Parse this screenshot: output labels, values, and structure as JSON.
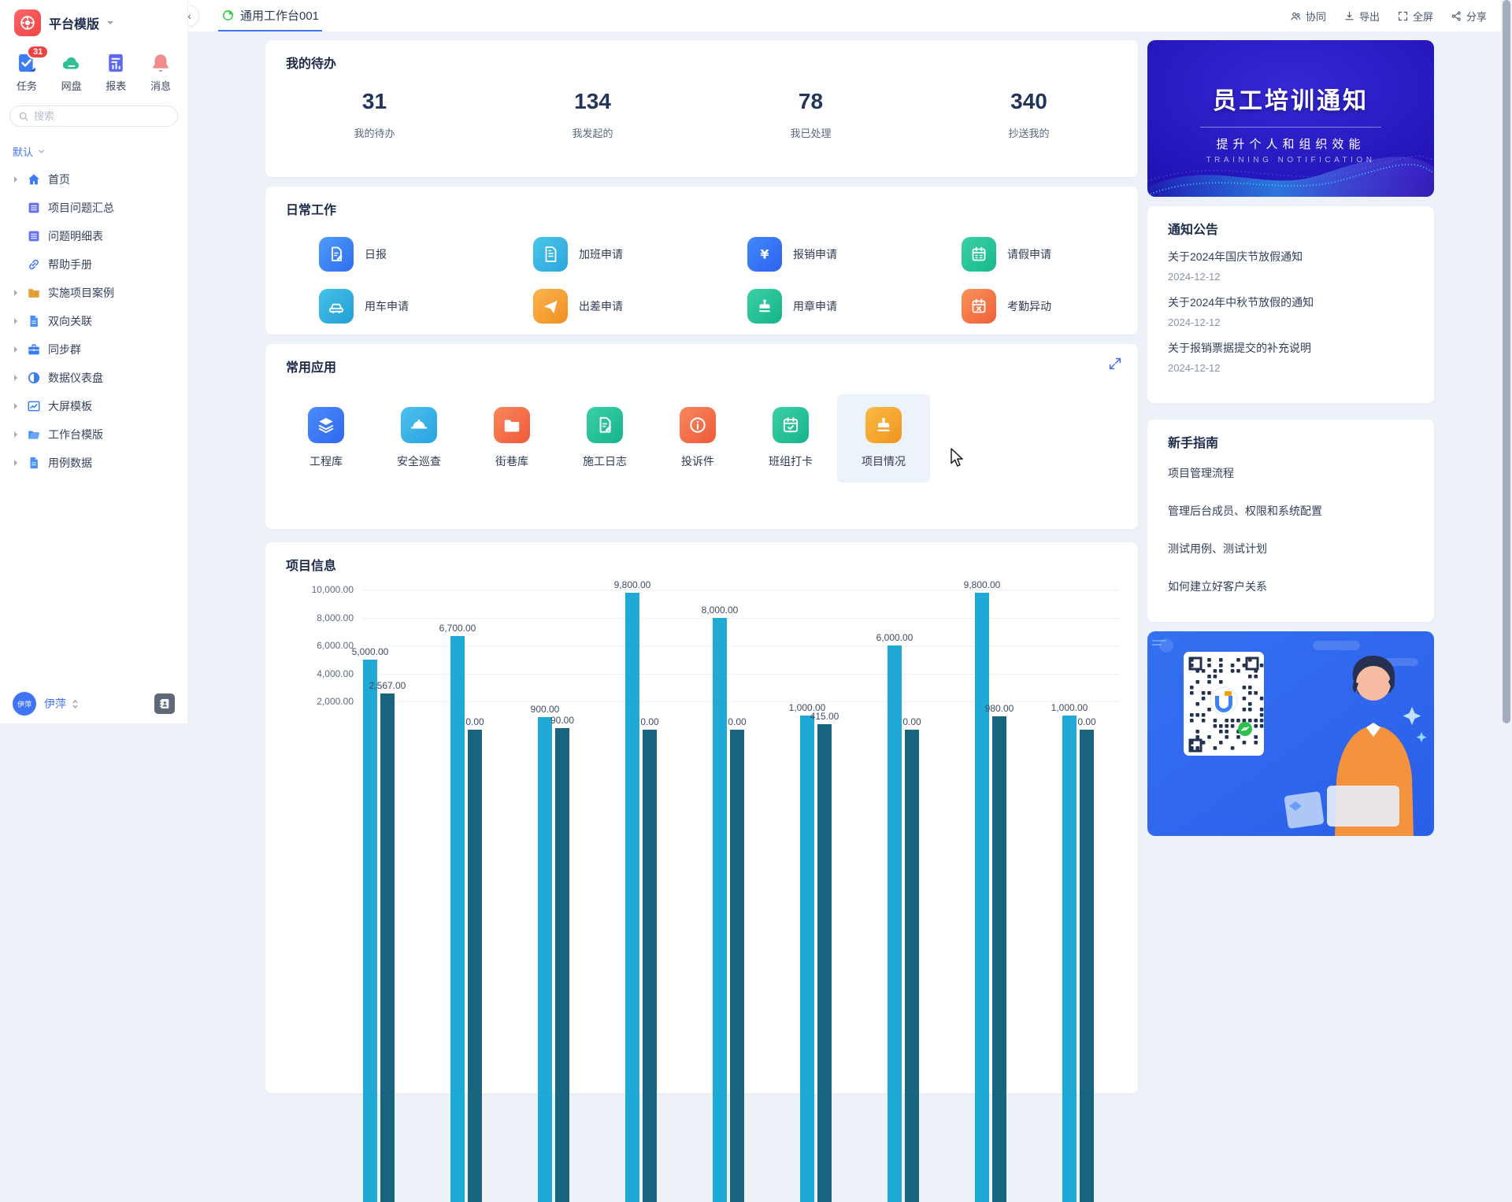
{
  "app": {
    "name": "平台模版"
  },
  "sidebar": {
    "quick_icons": [
      {
        "label": "任务",
        "icon": "task",
        "badge": "31"
      },
      {
        "label": "网盘",
        "icon": "disk",
        "badge": null
      },
      {
        "label": "报表",
        "icon": "report",
        "badge": null
      },
      {
        "label": "消息",
        "icon": "message",
        "badge": null
      }
    ],
    "search_placeholder": "搜索",
    "group_label": "默认",
    "menu": [
      {
        "label": "首页",
        "icon": "home",
        "expandable": true
      },
      {
        "label": "项目问题汇总",
        "icon": "table",
        "expandable": false
      },
      {
        "label": "问题明细表",
        "icon": "table",
        "expandable": false
      },
      {
        "label": "帮助手册",
        "icon": "link",
        "expandable": false
      },
      {
        "label": "实施项目案例",
        "icon": "folderAmber",
        "expandable": true
      },
      {
        "label": "双向关联",
        "icon": "doc",
        "expandable": true
      },
      {
        "label": "同步群",
        "icon": "briefcase",
        "expandable": true
      },
      {
        "label": "数据仪表盘",
        "icon": "halfcircle",
        "expandable": true
      },
      {
        "label": "大屏模板",
        "icon": "chartline",
        "expandable": true
      },
      {
        "label": "工作台模版",
        "icon": "folderOpen",
        "expandable": true
      },
      {
        "label": "用例数据",
        "icon": "doc",
        "expandable": true
      }
    ],
    "user": {
      "name": "伊萍"
    }
  },
  "topbar": {
    "collapse_glyph": "«",
    "tab": "通用工作台001",
    "actions": [
      {
        "label": "协同",
        "icon": "collab"
      },
      {
        "label": "导出",
        "icon": "export"
      },
      {
        "label": "全屏",
        "icon": "fullscreen"
      },
      {
        "label": "分享",
        "icon": "share"
      }
    ]
  },
  "todo": {
    "title": "我的待办",
    "stats": [
      {
        "value": "31",
        "label": "我的待办"
      },
      {
        "value": "134",
        "label": "我发起的"
      },
      {
        "value": "78",
        "label": "我已处理"
      },
      {
        "value": "340",
        "label": "抄送我的"
      }
    ]
  },
  "daily": {
    "title": "日常工作",
    "items": [
      {
        "label": "日报",
        "icon": "docpen",
        "c1": "#4f9bf8",
        "c2": "#2e6ef0"
      },
      {
        "label": "加班申请",
        "icon": "docplain",
        "c1": "#4cc5e8",
        "c2": "#2ba6dd"
      },
      {
        "label": "报销申请",
        "icon": "yen",
        "c1": "#4288f8",
        "c2": "#2b63ef"
      },
      {
        "label": "请假申请",
        "icon": "calendar",
        "c1": "#3bd0a4",
        "c2": "#17b98e"
      },
      {
        "label": "用车申请",
        "icon": "car",
        "c1": "#45c2e6",
        "c2": "#229fd6"
      },
      {
        "label": "出差申请",
        "icon": "plane",
        "c1": "#f9b44d",
        "c2": "#f18f21"
      },
      {
        "label": "用章申请",
        "icon": "stamp",
        "c1": "#3bd0a4",
        "c2": "#14b48a"
      },
      {
        "label": "考勤异动",
        "icon": "calx",
        "c1": "#f9925c",
        "c2": "#f05f35"
      }
    ]
  },
  "apps": {
    "title": "常用应用",
    "items": [
      {
        "label": "工程库",
        "icon": "layers",
        "c1": "#4a8bf8",
        "c2": "#2f68f0",
        "highlighted": false
      },
      {
        "label": "安全巡查",
        "icon": "helmet",
        "c1": "#4cc0ee",
        "c2": "#28a3e0",
        "highlighted": false
      },
      {
        "label": "街巷库",
        "icon": "folder",
        "c1": "#f8875c",
        "c2": "#ef5a3a",
        "highlighted": false
      },
      {
        "label": "施工日志",
        "icon": "docpen",
        "c1": "#3bd0a4",
        "c2": "#16b48c",
        "highlighted": false
      },
      {
        "label": "投诉件",
        "icon": "info",
        "c1": "#f8875c",
        "c2": "#ef5a3a",
        "highlighted": false
      },
      {
        "label": "班组打卡",
        "icon": "calcheck",
        "c1": "#3bd0a4",
        "c2": "#16b48c",
        "highlighted": false
      },
      {
        "label": "项目情况",
        "icon": "stamp",
        "c1": "#f9bb45",
        "c2": "#f0951f",
        "highlighted": true
      }
    ]
  },
  "project": {
    "title": "项目信息"
  },
  "chart_data": {
    "type": "bar",
    "title": "项目信息",
    "categories": [
      "",
      "",
      "",
      "",
      "",
      "",
      "",
      "",
      ""
    ],
    "series": [
      {
        "name": "series-1",
        "color": "#1ea9d6",
        "values": [
          5000,
          6700,
          900,
          9800,
          8000,
          1000,
          6000,
          9800,
          1000
        ]
      },
      {
        "name": "series-2",
        "color": "#19647f",
        "values": [
          2567,
          0,
          90,
          0,
          0,
          415,
          0,
          980,
          0
        ]
      }
    ],
    "value_labels": [
      [
        "5,000.00",
        "2,567.00"
      ],
      [
        "6,700.00",
        "0.00"
      ],
      [
        "900.00",
        "90.00"
      ],
      [
        "9,800.00",
        "0.00"
      ],
      [
        "8,000.00",
        "0.00"
      ],
      [
        "1,000.00",
        "415.00"
      ],
      [
        "6,000.00",
        "0.00"
      ],
      [
        "9,800.00",
        "980.00"
      ],
      [
        "1,000.00",
        "0.00"
      ]
    ],
    "yticks": [
      {
        "value": 2000,
        "label": "2,000.00"
      },
      {
        "value": 4000,
        "label": "4,000.00"
      },
      {
        "value": 6000,
        "label": "6,000.00"
      },
      {
        "value": 8000,
        "label": "8,000.00"
      },
      {
        "value": 10000,
        "label": "10,000.00"
      }
    ],
    "ylim": [
      0,
      10400
    ],
    "grid": true,
    "legend_position": "none",
    "note": "x-axis category labels are cut off below the viewport"
  },
  "banner": {
    "title": "员工培训通知",
    "subtitle": "提升个人和组织效能",
    "subtext": "TRAINING NOTIFICATION"
  },
  "notices": {
    "title": "通知公告",
    "items": [
      {
        "title": "关于2024年国庆节放假通知",
        "date": "2024-12-12"
      },
      {
        "title": "关于2024年中秋节放假的通知",
        "date": "2024-12-12"
      },
      {
        "title": "关于报销票据提交的补充说明",
        "date": "2024-12-12"
      }
    ]
  },
  "guide": {
    "title": "新手指南",
    "items": [
      "项目管理流程",
      "管理后台成员、权限和系统配置",
      "测试用例、测试计划",
      "如何建立好客户关系"
    ]
  }
}
